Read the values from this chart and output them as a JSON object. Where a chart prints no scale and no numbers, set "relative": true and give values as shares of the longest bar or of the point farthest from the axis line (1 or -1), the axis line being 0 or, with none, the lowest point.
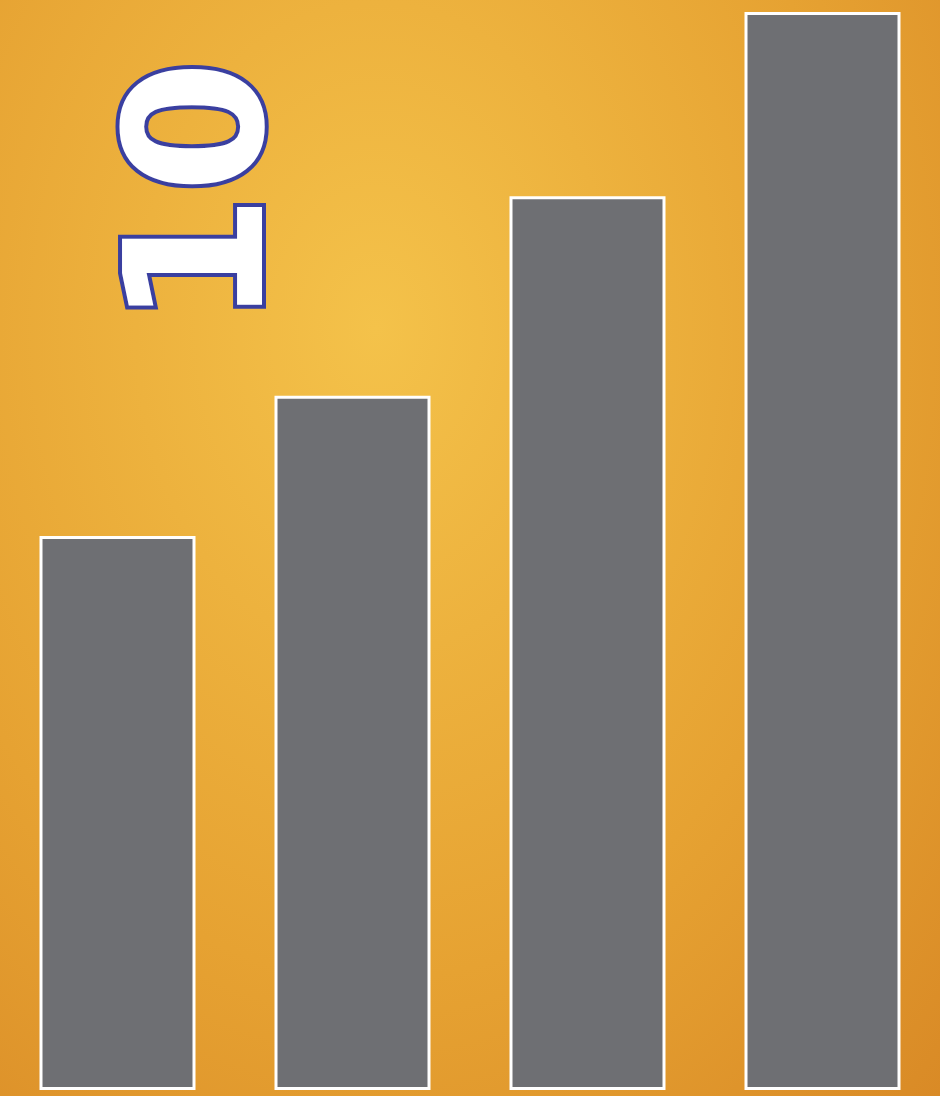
{
  "chart_data": {
    "type": "bar",
    "relative": true,
    "categories": [
      null,
      null,
      null,
      null
    ],
    "values": [
      0.514,
      0.644,
      0.829,
      1
    ],
    "color": "#6e6f73",
    "annotations": [
      "10"
    ]
  }
}
